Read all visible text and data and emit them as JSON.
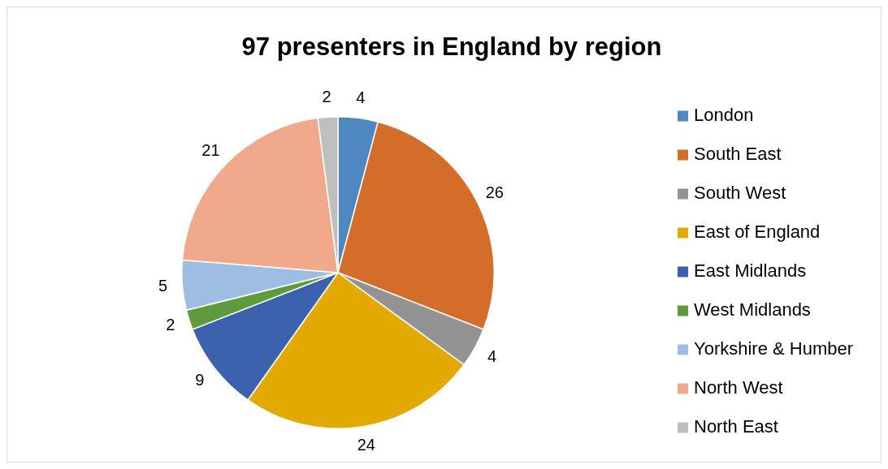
{
  "chart_data": {
    "type": "pie",
    "title": "97 presenters in England by region",
    "categories": [
      "London",
      "South East",
      "South West",
      "East of England",
      "East Midlands",
      "West Midlands",
      "Yorkshire & Humber",
      "North West",
      "North East"
    ],
    "values": [
      4,
      26,
      4,
      24,
      9,
      2,
      5,
      21,
      2
    ],
    "colors": [
      "#4f88c0",
      "#d46d2a",
      "#939393",
      "#e2aa00",
      "#3c62ae",
      "#5f9a3d",
      "#9dbde2",
      "#f0a98a",
      "#bfbfbf"
    ],
    "data_labels": true,
    "legend": "right"
  }
}
